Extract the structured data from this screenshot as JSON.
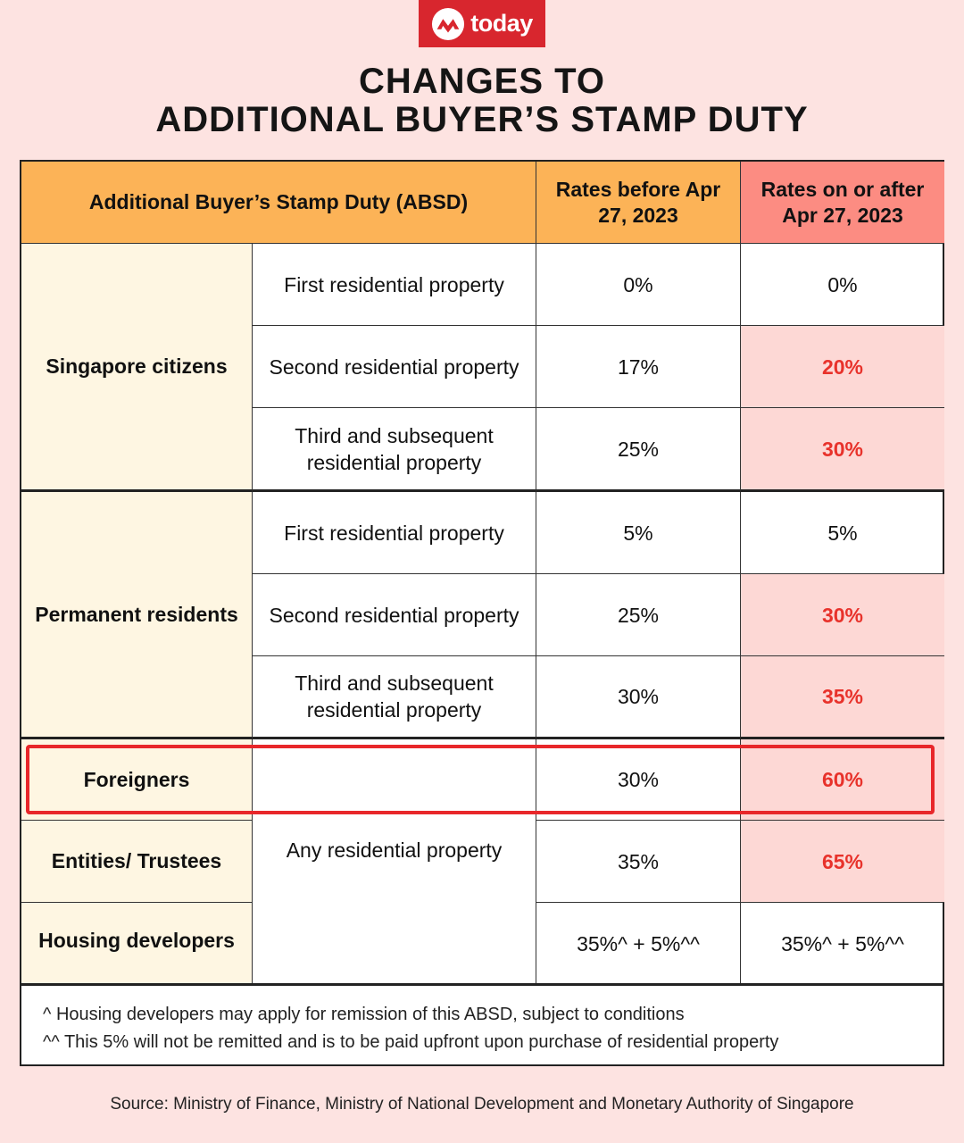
{
  "brand": {
    "name": "today",
    "color": "#d8262e",
    "icon": "mediacorp-logo-icon"
  },
  "title": {
    "line1": "CHANGES TO",
    "line2": "ADDITIONAL BUYER’S STAMP DUTY"
  },
  "colors": {
    "header_orange": "#fcb357",
    "header_red": "#fc8c82",
    "highlight_text": "#e8322b",
    "cream": "#fef6e2",
    "pink": "#fdd8d5",
    "background": "#fde3e1"
  },
  "table": {
    "header": {
      "category": "Additional Buyer’s Stamp Duty (ABSD)",
      "before": "Rates before Apr 27, 2023",
      "after": "Rates on or after Apr 27, 2023"
    },
    "groups": {
      "citizens": "Singapore citizens",
      "prs": "Permanent residents",
      "foreigners": "Foreigners",
      "entities": "Entities/ Trustees",
      "developers": "Housing developers"
    },
    "property": {
      "first": "First residential property",
      "second": "Second residential property",
      "third": "Third and subsequent residential property",
      "any": "Any residential property"
    },
    "rates": {
      "sc_first": {
        "before": "0%",
        "after": "0%"
      },
      "sc_second": {
        "before": "17%",
        "after": "20%"
      },
      "sc_third": {
        "before": "25%",
        "after": "30%"
      },
      "pr_first": {
        "before": "5%",
        "after": "5%"
      },
      "pr_second": {
        "before": "25%",
        "after": "30%"
      },
      "pr_third": {
        "before": "30%",
        "after": "35%"
      },
      "foreigners": {
        "before": "30%",
        "after": "60%"
      },
      "entities": {
        "before": "35%",
        "after": "65%"
      },
      "developers": {
        "before": "35%^ + 5%^^",
        "after": "35%^ + 5%^^"
      }
    },
    "notes": [
      "^ Housing developers may apply for remission of this ABSD, subject to conditions",
      "^^ This 5% will not be remitted and is to be paid upfront upon purchase of residential property"
    ]
  },
  "source": "Source:  Ministry of Finance, Ministry of National Development  and Monetary Authority of Singapore"
}
